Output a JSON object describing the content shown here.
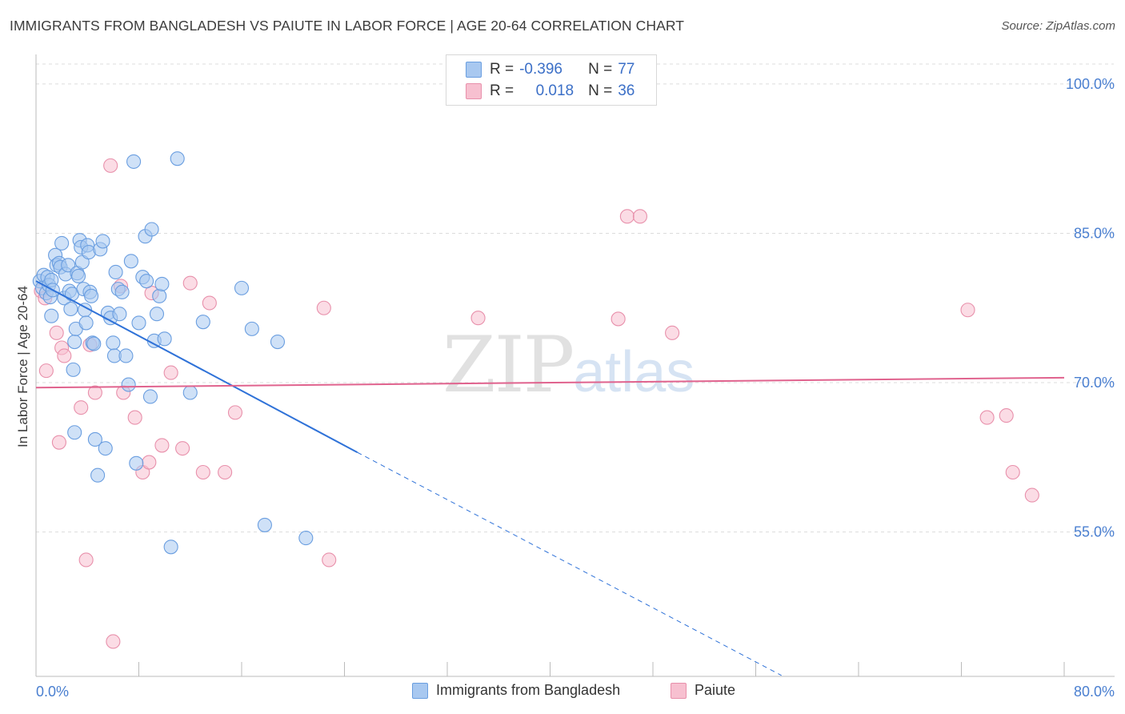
{
  "title": "IMMIGRANTS FROM BANGLADESH VS PAIUTE IN LABOR FORCE | AGE 20-64 CORRELATION CHART",
  "source": "Source: ZipAtlas.com",
  "watermark": {
    "zip": "ZIP",
    "atlas": "atlas"
  },
  "legend_top": {
    "rows": [
      {
        "r_label": "R =",
        "r_value": "-0.396",
        "n_label": "N =",
        "n_value": "77",
        "color": "#a8c8f0",
        "border": "#6a9ee0"
      },
      {
        "r_label": "R =",
        "r_value": "0.018",
        "n_label": "N =",
        "n_value": "36",
        "color": "#f7c0d0",
        "border": "#e890ab"
      }
    ]
  },
  "legend_bottom": [
    {
      "label": "Immigrants from Bangladesh",
      "color": "#a8c8f0",
      "border": "#6a9ee0"
    },
    {
      "label": "Paiute",
      "color": "#f7c0d0",
      "border": "#e890ab"
    }
  ],
  "chart_data": {
    "type": "scatter",
    "title": "IMMIGRANTS FROM BANGLADESH VS PAIUTE IN LABOR FORCE | AGE 20-64 CORRELATION CHART",
    "xlabel": "",
    "ylabel": "In Labor Force | Age 20-64",
    "xlim": [
      0,
      80
    ],
    "ylim": [
      40.5,
      102
    ],
    "x_tick_labels": [
      "0.0%",
      "80.0%"
    ],
    "y_ticks": [
      55,
      70,
      85,
      100
    ],
    "y_tick_labels": [
      "55.0%",
      "70.0%",
      "85.0%",
      "100.0%"
    ],
    "grid": true,
    "legend_placement": "top-center",
    "series": [
      {
        "name": "Immigrants from Bangladesh",
        "color": "#6a9ee0",
        "fill": "#a8c8f0",
        "trend": {
          "x": [
            0,
            25
          ],
          "y": [
            80.2,
            63.0
          ],
          "dashed_to": [
            58,
            40.6
          ],
          "color": "#2f72d8"
        },
        "points": [
          [
            0.3,
            80.2
          ],
          [
            0.5,
            79.5
          ],
          [
            0.6,
            80.8
          ],
          [
            0.8,
            79.0
          ],
          [
            0.9,
            80.6
          ],
          [
            1.0,
            79.8
          ],
          [
            1.1,
            78.6
          ],
          [
            1.2,
            80.3
          ],
          [
            1.3,
            79.3
          ],
          [
            1.2,
            76.7
          ],
          [
            1.5,
            82.8
          ],
          [
            1.6,
            81.8
          ],
          [
            1.8,
            82.0
          ],
          [
            1.9,
            81.6
          ],
          [
            2.0,
            84.0
          ],
          [
            2.2,
            78.5
          ],
          [
            2.3,
            80.9
          ],
          [
            2.5,
            81.8
          ],
          [
            2.6,
            79.2
          ],
          [
            2.7,
            77.4
          ],
          [
            2.8,
            78.9
          ],
          [
            2.9,
            71.3
          ],
          [
            3.0,
            74.1
          ],
          [
            3.1,
            75.4
          ],
          [
            3.2,
            81.0
          ],
          [
            3.3,
            80.7
          ],
          [
            3.0,
            65.0
          ],
          [
            3.4,
            84.3
          ],
          [
            3.5,
            83.6
          ],
          [
            3.6,
            82.1
          ],
          [
            3.7,
            79.4
          ],
          [
            3.8,
            77.3
          ],
          [
            3.9,
            76.0
          ],
          [
            4.0,
            83.8
          ],
          [
            4.1,
            83.1
          ],
          [
            4.2,
            79.1
          ],
          [
            4.3,
            78.7
          ],
          [
            4.4,
            74.0
          ],
          [
            4.5,
            73.9
          ],
          [
            4.6,
            64.3
          ],
          [
            4.8,
            60.7
          ],
          [
            5.0,
            83.4
          ],
          [
            5.2,
            84.2
          ],
          [
            5.4,
            63.4
          ],
          [
            5.6,
            77.0
          ],
          [
            5.8,
            76.5
          ],
          [
            6.0,
            74.0
          ],
          [
            6.1,
            72.7
          ],
          [
            6.2,
            81.1
          ],
          [
            6.4,
            79.4
          ],
          [
            6.5,
            76.9
          ],
          [
            6.7,
            79.1
          ],
          [
            7.0,
            72.7
          ],
          [
            7.2,
            69.8
          ],
          [
            7.4,
            82.2
          ],
          [
            7.6,
            92.2
          ],
          [
            7.8,
            61.9
          ],
          [
            8.0,
            76.0
          ],
          [
            8.3,
            80.6
          ],
          [
            8.5,
            84.7
          ],
          [
            8.6,
            80.2
          ],
          [
            8.9,
            68.6
          ],
          [
            9.0,
            85.4
          ],
          [
            9.2,
            74.2
          ],
          [
            9.4,
            76.9
          ],
          [
            9.6,
            78.7
          ],
          [
            9.8,
            79.9
          ],
          [
            10.0,
            74.4
          ],
          [
            10.5,
            53.5
          ],
          [
            11.0,
            92.5
          ],
          [
            12.0,
            69.0
          ],
          [
            13.0,
            76.1
          ],
          [
            16.0,
            79.5
          ],
          [
            16.8,
            75.4
          ],
          [
            17.8,
            55.7
          ],
          [
            18.8,
            74.1
          ],
          [
            21.0,
            54.4
          ]
        ]
      },
      {
        "name": "Paiute",
        "color": "#e890ab",
        "fill": "#f7c0d0",
        "trend": {
          "x": [
            0,
            80
          ],
          "y": [
            69.5,
            70.5
          ],
          "color": "#e0638e"
        },
        "points": [
          [
            0.4,
            79.2
          ],
          [
            0.7,
            78.5
          ],
          [
            0.8,
            71.2
          ],
          [
            1.6,
            75.0
          ],
          [
            1.8,
            64.0
          ],
          [
            2.0,
            73.5
          ],
          [
            2.2,
            72.7
          ],
          [
            3.5,
            67.5
          ],
          [
            3.9,
            52.2
          ],
          [
            4.2,
            73.8
          ],
          [
            4.6,
            69.0
          ],
          [
            5.8,
            91.8
          ],
          [
            6.0,
            44.0
          ],
          [
            6.6,
            79.7
          ],
          [
            6.8,
            69.0
          ],
          [
            7.7,
            66.5
          ],
          [
            8.3,
            61.0
          ],
          [
            8.8,
            62.0
          ],
          [
            9.0,
            79.0
          ],
          [
            9.8,
            63.7
          ],
          [
            10.5,
            71.0
          ],
          [
            11.4,
            63.4
          ],
          [
            12.0,
            80.0
          ],
          [
            13.0,
            61.0
          ],
          [
            13.5,
            78.0
          ],
          [
            14.7,
            61.0
          ],
          [
            15.5,
            67.0
          ],
          [
            22.4,
            77.5
          ],
          [
            22.8,
            52.2
          ],
          [
            34.4,
            76.5
          ],
          [
            45.3,
            76.4
          ],
          [
            46.0,
            86.7
          ],
          [
            47.0,
            86.7
          ],
          [
            49.5,
            75.0
          ],
          [
            72.5,
            77.3
          ],
          [
            74.0,
            66.5
          ]
        ]
      }
    ],
    "extra_paiute_points": [
      [
        75.5,
        66.7
      ],
      [
        76.0,
        61.0
      ],
      [
        77.5,
        58.7
      ]
    ]
  }
}
